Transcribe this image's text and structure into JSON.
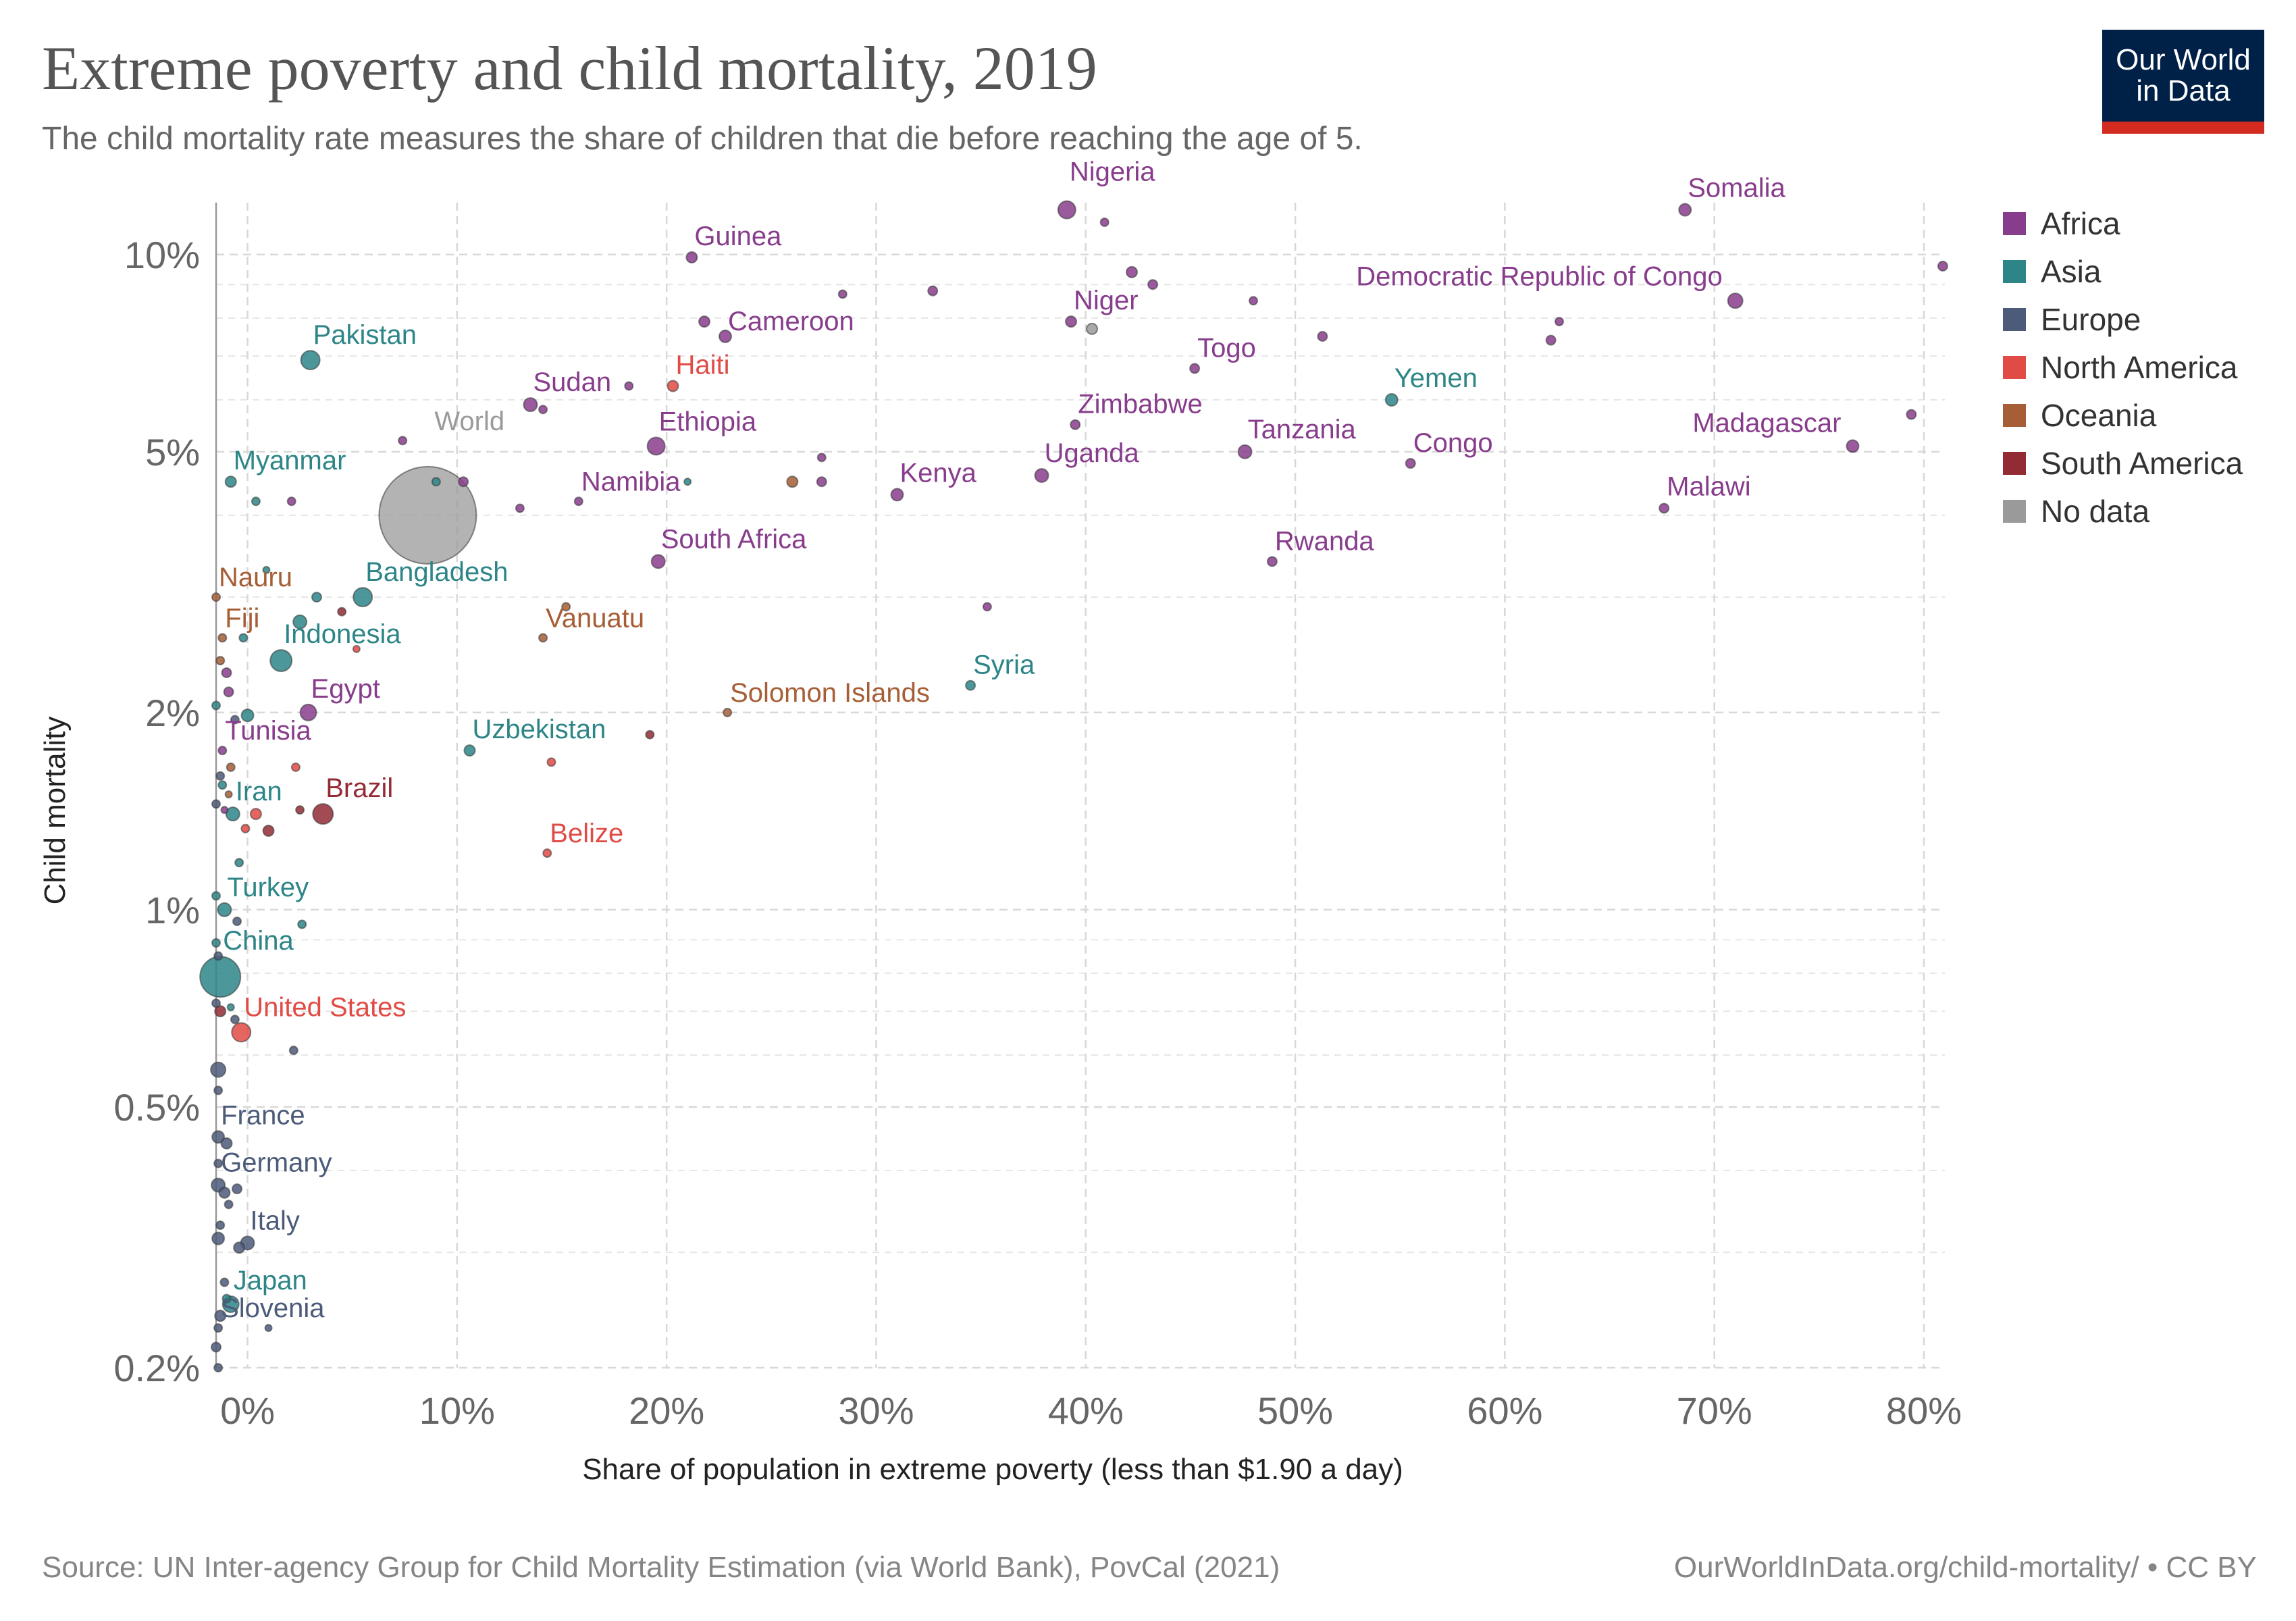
{
  "header": {
    "title": "Extreme poverty and child mortality, 2019",
    "subtitle": "The child mortality rate measures the share of children that die before reaching the age of 5."
  },
  "logo": {
    "line1": "Our World",
    "line2": "in Data"
  },
  "footer": {
    "source": "Source: UN Inter-agency Group for Child Mortality Estimation (via World Bank), PovCal (2021)",
    "url": "OurWorldInData.org/child-mortality/ • CC BY"
  },
  "chart_data": {
    "type": "scatter",
    "title": "Extreme poverty and child mortality, 2019",
    "xlabel": "Share of population in extreme poverty (less than $1.90 a day)",
    "ylabel": "Child mortality",
    "xlim": [
      -1.5,
      81
    ],
    "ylim": [
      0.2,
      12
    ],
    "yscale": "log",
    "grid": true,
    "legend_position": "right",
    "x_ticks": [
      {
        "value": 0,
        "label": "0%"
      },
      {
        "value": 10,
        "label": "10%"
      },
      {
        "value": 20,
        "label": "20%"
      },
      {
        "value": 30,
        "label": "30%"
      },
      {
        "value": 40,
        "label": "40%"
      },
      {
        "value": 50,
        "label": "50%"
      },
      {
        "value": 60,
        "label": "60%"
      },
      {
        "value": 70,
        "label": "70%"
      },
      {
        "value": 80,
        "label": "80%"
      }
    ],
    "y_ticks": [
      {
        "value": 0.2,
        "label": "0.2%"
      },
      {
        "value": 0.5,
        "label": "0.5%"
      },
      {
        "value": 1,
        "label": "1%"
      },
      {
        "value": 2,
        "label": "2%"
      },
      {
        "value": 5,
        "label": "5%"
      },
      {
        "value": 10,
        "label": "10%"
      }
    ],
    "y_minor_gridlines": [
      0.3,
      0.4,
      0.6,
      0.7,
      0.8,
      0.9,
      3,
      4,
      6,
      7,
      8,
      9
    ],
    "colors": {
      "Africa": "#883d8c",
      "Asia": "#2d8587",
      "Europe": "#4c5b7a",
      "North America": "#e04b45",
      "Oceania": "#a65e36",
      "South America": "#932b35",
      "No data": "#9a9a9a"
    },
    "legend": [
      "Africa",
      "Asia",
      "Europe",
      "North America",
      "Oceania",
      "South America",
      "No data"
    ],
    "points": [
      {
        "label": "World",
        "x": 8.6,
        "y": 4.0,
        "region": "No data",
        "size": 72
      },
      {
        "label": "Nigeria",
        "x": 39.1,
        "y": 11.7,
        "region": "Africa",
        "size": 13
      },
      {
        "label": "Somalia",
        "x": 68.6,
        "y": 11.7,
        "region": "Africa",
        "size": 9
      },
      {
        "label": "Guinea",
        "x": 21.2,
        "y": 9.9,
        "region": "Africa",
        "size": 8
      },
      {
        "label": "Democratic Republic of Congo",
        "x": 71.0,
        "y": 8.5,
        "region": "Africa",
        "size": 11
      },
      {
        "label": "Cameroon",
        "x": 22.8,
        "y": 7.5,
        "region": "Africa",
        "size": 9
      },
      {
        "label": "Niger",
        "x": 39.3,
        "y": 7.9,
        "region": "Africa",
        "size": 8
      },
      {
        "label": "Pakistan",
        "x": 3.0,
        "y": 6.9,
        "region": "Asia",
        "size": 14
      },
      {
        "label": "Togo",
        "x": 45.2,
        "y": 6.7,
        "region": "Africa",
        "size": 7
      },
      {
        "label": "Haiti",
        "x": 20.3,
        "y": 6.3,
        "region": "North America",
        "size": 8
      },
      {
        "label": "Sudan",
        "x": 13.5,
        "y": 5.9,
        "region": "Africa",
        "size": 10
      },
      {
        "label": "Yemen",
        "x": 54.6,
        "y": 6.0,
        "region": "Asia",
        "size": 9
      },
      {
        "label": "Ethiopia",
        "x": 19.5,
        "y": 5.1,
        "region": "Africa",
        "size": 13
      },
      {
        "label": "Zimbabwe",
        "x": 39.5,
        "y": 5.5,
        "region": "Africa",
        "size": 7
      },
      {
        "label": "Tanzania",
        "x": 47.6,
        "y": 5.0,
        "region": "Africa",
        "size": 10
      },
      {
        "label": "Congo",
        "x": 55.5,
        "y": 4.8,
        "region": "Africa",
        "size": 7
      },
      {
        "label": "Madagascar",
        "x": 76.6,
        "y": 5.1,
        "region": "Africa",
        "size": 9
      },
      {
        "label": "Myanmar",
        "x": -0.8,
        "y": 4.5,
        "region": "Asia",
        "size": 8
      },
      {
        "label": "Namibia",
        "x": 15.8,
        "y": 4.2,
        "region": "Africa",
        "size": 6
      },
      {
        "label": "Kenya",
        "x": 31.0,
        "y": 4.3,
        "region": "Africa",
        "size": 9
      },
      {
        "label": "Uganda",
        "x": 37.9,
        "y": 4.6,
        "region": "Africa",
        "size": 10
      },
      {
        "label": "Malawi",
        "x": 67.6,
        "y": 4.1,
        "region": "Africa",
        "size": 7
      },
      {
        "label": "Rwanda",
        "x": 48.9,
        "y": 3.4,
        "region": "Africa",
        "size": 7
      },
      {
        "label": "South Africa",
        "x": 19.6,
        "y": 3.4,
        "region": "Africa",
        "size": 10
      },
      {
        "label": "Bangladesh",
        "x": 5.5,
        "y": 3.0,
        "region": "Asia",
        "size": 14
      },
      {
        "label": "Nauru",
        "x": -1.5,
        "y": 3.0,
        "region": "Oceania",
        "size": 6
      },
      {
        "label": "Vanuatu",
        "x": 14.1,
        "y": 2.6,
        "region": "Oceania",
        "size": 6
      },
      {
        "label": "Fiji",
        "x": -1.2,
        "y": 2.6,
        "region": "Oceania",
        "size": 6
      },
      {
        "label": "Indonesia",
        "x": 1.6,
        "y": 2.4,
        "region": "Asia",
        "size": 16
      },
      {
        "label": "Syria",
        "x": 34.5,
        "y": 2.2,
        "region": "Asia",
        "size": 7
      },
      {
        "label": "Egypt",
        "x": 2.9,
        "y": 2.0,
        "region": "Africa",
        "size": 12
      },
      {
        "label": "Solomon Islands",
        "x": 22.9,
        "y": 2.0,
        "region": "Oceania",
        "size": 6
      },
      {
        "label": "Tunisia",
        "x": -1.2,
        "y": 1.75,
        "region": "Africa",
        "size": 6
      },
      {
        "label": "Uzbekistan",
        "x": 10.6,
        "y": 1.75,
        "region": "Asia",
        "size": 8
      },
      {
        "label": "Iran",
        "x": -0.7,
        "y": 1.4,
        "region": "Asia",
        "size": 10
      },
      {
        "label": "Brazil",
        "x": 3.6,
        "y": 1.4,
        "region": "South America",
        "size": 15
      },
      {
        "label": "Belize",
        "x": 14.3,
        "y": 1.22,
        "region": "North America",
        "size": 6
      },
      {
        "label": "Turkey",
        "x": -1.1,
        "y": 1.0,
        "region": "Asia",
        "size": 10
      },
      {
        "label": "China",
        "x": -1.3,
        "y": 0.79,
        "region": "Asia",
        "size": 30
      },
      {
        "label": "United States",
        "x": -0.3,
        "y": 0.65,
        "region": "North America",
        "size": 14
      },
      {
        "label": "France",
        "x": -1.4,
        "y": 0.45,
        "region": "Europe",
        "size": 9
      },
      {
        "label": "Germany",
        "x": -1.4,
        "y": 0.38,
        "region": "Europe",
        "size": 10
      },
      {
        "label": "Italy",
        "x": 0.0,
        "y": 0.31,
        "region": "Europe",
        "size": 10
      },
      {
        "label": "Japan",
        "x": -0.8,
        "y": 0.25,
        "region": "Asia",
        "size": 12
      },
      {
        "label": "Slovenia",
        "x": -1.4,
        "y": 0.23,
        "region": "Europe",
        "size": 6
      },
      {
        "x": 10.3,
        "y": 4.5,
        "region": "Africa",
        "size": 7
      },
      {
        "x": 7.4,
        "y": 5.2,
        "region": "Africa",
        "size": 6
      },
      {
        "x": 9.0,
        "y": 4.5,
        "region": "Asia",
        "size": 6
      },
      {
        "x": 18.2,
        "y": 6.3,
        "region": "Africa",
        "size": 6
      },
      {
        "x": 14.1,
        "y": 5.8,
        "region": "Africa",
        "size": 6
      },
      {
        "x": 21.0,
        "y": 4.5,
        "region": "Asia",
        "size": 5
      },
      {
        "x": 13.0,
        "y": 4.1,
        "region": "Africa",
        "size": 6
      },
      {
        "x": 21.8,
        "y": 7.9,
        "region": "Africa",
        "size": 8
      },
      {
        "x": 28.4,
        "y": 8.7,
        "region": "Africa",
        "size": 6
      },
      {
        "x": 32.7,
        "y": 8.8,
        "region": "Africa",
        "size": 7
      },
      {
        "x": 40.9,
        "y": 11.2,
        "region": "Africa",
        "size": 6
      },
      {
        "x": 42.2,
        "y": 9.4,
        "region": "Africa",
        "size": 8
      },
      {
        "x": 43.2,
        "y": 9.0,
        "region": "Africa",
        "size": 7
      },
      {
        "x": 40.3,
        "y": 7.7,
        "region": "No data",
        "size": 8
      },
      {
        "x": 48.0,
        "y": 8.5,
        "region": "Africa",
        "size": 6
      },
      {
        "x": 51.3,
        "y": 7.5,
        "region": "Africa",
        "size": 7
      },
      {
        "x": 62.2,
        "y": 7.4,
        "region": "Africa",
        "size": 7
      },
      {
        "x": 62.6,
        "y": 7.9,
        "region": "Africa",
        "size": 6
      },
      {
        "x": 80.9,
        "y": 9.6,
        "region": "Africa",
        "size": 7
      },
      {
        "x": 79.4,
        "y": 5.7,
        "region": "Africa",
        "size": 7
      },
      {
        "x": 27.4,
        "y": 4.9,
        "region": "Africa",
        "size": 6
      },
      {
        "x": 27.4,
        "y": 4.5,
        "region": "Africa",
        "size": 7
      },
      {
        "x": 26.0,
        "y": 4.5,
        "region": "Oceania",
        "size": 8
      },
      {
        "x": 35.3,
        "y": 2.9,
        "region": "Africa",
        "size": 6
      },
      {
        "x": 0.4,
        "y": 4.2,
        "region": "Asia",
        "size": 6
      },
      {
        "x": 2.1,
        "y": 4.2,
        "region": "Africa",
        "size": 6
      },
      {
        "x": 0.9,
        "y": 3.3,
        "region": "Asia",
        "size": 5
      },
      {
        "x": 3.3,
        "y": 3.0,
        "region": "Asia",
        "size": 7
      },
      {
        "x": 4.5,
        "y": 2.85,
        "region": "South America",
        "size": 6
      },
      {
        "x": 2.5,
        "y": 2.75,
        "region": "Asia",
        "size": 10
      },
      {
        "x": 5.2,
        "y": 2.5,
        "region": "North America",
        "size": 5
      },
      {
        "x": 15.2,
        "y": 2.9,
        "region": "Oceania",
        "size": 6
      },
      {
        "x": 19.2,
        "y": 1.85,
        "region": "South America",
        "size": 6
      },
      {
        "x": 14.5,
        "y": 1.68,
        "region": "North America",
        "size": 6
      },
      {
        "x": 2.3,
        "y": 1.65,
        "region": "North America",
        "size": 6
      },
      {
        "x": -0.2,
        "y": 2.6,
        "region": "Asia",
        "size": 6
      },
      {
        "x": -1.3,
        "y": 2.4,
        "region": "Oceania",
        "size": 6
      },
      {
        "x": -1.0,
        "y": 2.3,
        "region": "Africa",
        "size": 7
      },
      {
        "x": -0.9,
        "y": 2.15,
        "region": "Africa",
        "size": 7
      },
      {
        "x": -1.5,
        "y": 2.05,
        "region": "Asia",
        "size": 6
      },
      {
        "x": -0.6,
        "y": 1.95,
        "region": "Europe",
        "size": 6
      },
      {
        "x": 0.0,
        "y": 1.98,
        "region": "Asia",
        "size": 9
      },
      {
        "x": -0.8,
        "y": 1.65,
        "region": "Oceania",
        "size": 6
      },
      {
        "x": -1.3,
        "y": 1.6,
        "region": "Europe",
        "size": 6
      },
      {
        "x": -1.2,
        "y": 1.55,
        "region": "Asia",
        "size": 6
      },
      {
        "x": -0.9,
        "y": 1.5,
        "region": "Oceania",
        "size": 5
      },
      {
        "x": -1.5,
        "y": 1.45,
        "region": "Europe",
        "size": 6
      },
      {
        "x": -1.1,
        "y": 1.42,
        "region": "Africa",
        "size": 5
      },
      {
        "x": 0.4,
        "y": 1.4,
        "region": "North America",
        "size": 8
      },
      {
        "x": -0.1,
        "y": 1.33,
        "region": "North America",
        "size": 6
      },
      {
        "x": 1.0,
        "y": 1.32,
        "region": "South America",
        "size": 8
      },
      {
        "x": 2.5,
        "y": 1.42,
        "region": "South America",
        "size": 6
      },
      {
        "x": -0.4,
        "y": 1.18,
        "region": "Asia",
        "size": 6
      },
      {
        "x": -1.5,
        "y": 1.05,
        "region": "Asia",
        "size": 6
      },
      {
        "x": -0.5,
        "y": 0.96,
        "region": "Europe",
        "size": 6
      },
      {
        "x": 2.6,
        "y": 0.95,
        "region": "Asia",
        "size": 6
      },
      {
        "x": -1.5,
        "y": 0.89,
        "region": "Asia",
        "size": 6
      },
      {
        "x": -1.4,
        "y": 0.85,
        "region": "Europe",
        "size": 6
      },
      {
        "x": -1.5,
        "y": 0.72,
        "region": "Europe",
        "size": 6
      },
      {
        "x": -1.3,
        "y": 0.7,
        "region": "South America",
        "size": 8
      },
      {
        "x": -0.8,
        "y": 0.71,
        "region": "Asia",
        "size": 5
      },
      {
        "x": -0.6,
        "y": 0.68,
        "region": "Europe",
        "size": 6
      },
      {
        "x": 2.2,
        "y": 0.61,
        "region": "Europe",
        "size": 6
      },
      {
        "x": -1.4,
        "y": 0.57,
        "region": "Europe",
        "size": 11
      },
      {
        "x": -1.4,
        "y": 0.53,
        "region": "Europe",
        "size": 6
      },
      {
        "x": -1.0,
        "y": 0.44,
        "region": "Europe",
        "size": 8
      },
      {
        "x": -1.4,
        "y": 0.41,
        "region": "Europe",
        "size": 6
      },
      {
        "x": -1.1,
        "y": 0.37,
        "region": "Europe",
        "size": 8
      },
      {
        "x": -0.5,
        "y": 0.375,
        "region": "Europe",
        "size": 7
      },
      {
        "x": -0.9,
        "y": 0.355,
        "region": "Europe",
        "size": 6
      },
      {
        "x": -1.3,
        "y": 0.33,
        "region": "Europe",
        "size": 6
      },
      {
        "x": -1.4,
        "y": 0.315,
        "region": "Europe",
        "size": 9
      },
      {
        "x": -0.4,
        "y": 0.305,
        "region": "Europe",
        "size": 8
      },
      {
        "x": -1.1,
        "y": 0.27,
        "region": "Europe",
        "size": 6
      },
      {
        "x": -1.0,
        "y": 0.255,
        "region": "Asia",
        "size": 6
      },
      {
        "x": -1.3,
        "y": 0.24,
        "region": "Europe",
        "size": 8
      },
      {
        "x": 1.0,
        "y": 0.23,
        "region": "Europe",
        "size": 5
      },
      {
        "x": -1.5,
        "y": 0.215,
        "region": "Europe",
        "size": 7
      },
      {
        "x": -1.4,
        "y": 0.2,
        "region": "Europe",
        "size": 6
      }
    ]
  }
}
